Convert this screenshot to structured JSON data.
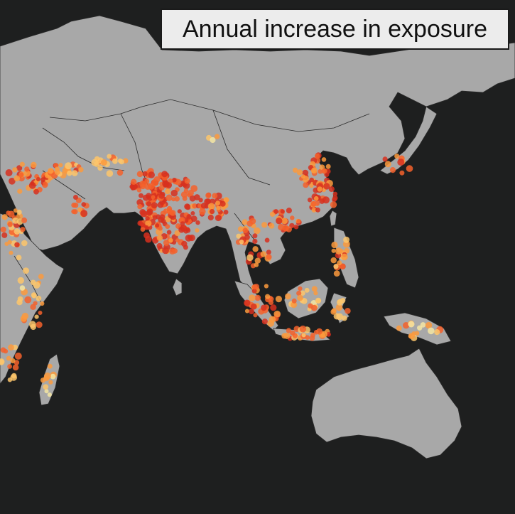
{
  "title": "Annual increase in exposure",
  "colors": {
    "ocean": "#1e1f1f",
    "land": "#a8a8a8",
    "border": "#2a2a2a",
    "ramp": [
      "#f5e6a3",
      "#fdc66b",
      "#fb9a3d",
      "#f4622b",
      "#d7301f"
    ]
  }
}
